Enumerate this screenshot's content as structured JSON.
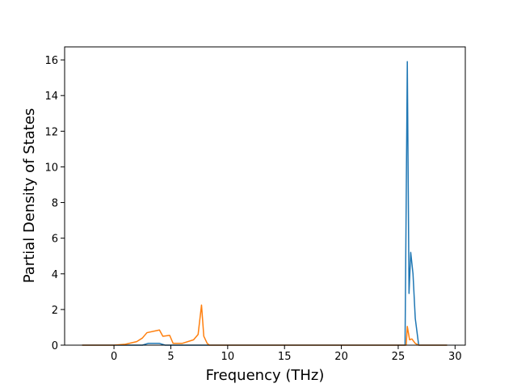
{
  "chart_data": {
    "type": "line",
    "x_label": "Frequency (THz)",
    "y_label": "Partial Density of States",
    "series": [
      {
        "color": "#1f77b4",
        "x": [
          -2.8,
          2.5,
          3,
          4,
          4.5,
          25.6,
          25.8,
          25.95,
          26.1,
          26.3,
          26.5,
          26.8,
          29.3
        ],
        "values": [
          0,
          0,
          0.1,
          0.1,
          0,
          0,
          15.9,
          2.9,
          5.2,
          4.0,
          1.5,
          0,
          0
        ]
      },
      {
        "color": "#ff7f0e",
        "x": [
          -2.8,
          0,
          1,
          2,
          2.5,
          2.9,
          4,
          4.3,
          4.9,
          5.2,
          6,
          7,
          7.4,
          7.7,
          7.9,
          8.2,
          8.4,
          25.7,
          25.8,
          26,
          26.2,
          26.5,
          26.8,
          29.3
        ],
        "values": [
          0,
          0,
          0.05,
          0.2,
          0.4,
          0.7,
          0.85,
          0.5,
          0.55,
          0.1,
          0.1,
          0.3,
          0.6,
          2.25,
          0.5,
          0.1,
          0,
          0,
          1.05,
          0.3,
          0.35,
          0.1,
          0,
          0
        ]
      }
    ],
    "xlim": [
      -4.34,
      30.9
    ],
    "ylim": [
      0,
      16.73
    ],
    "xticks": [
      0,
      5,
      10,
      15,
      20,
      25,
      30
    ],
    "yticks": [
      0,
      2,
      4,
      6,
      8,
      10,
      12,
      14,
      16
    ],
    "grid": false
  }
}
